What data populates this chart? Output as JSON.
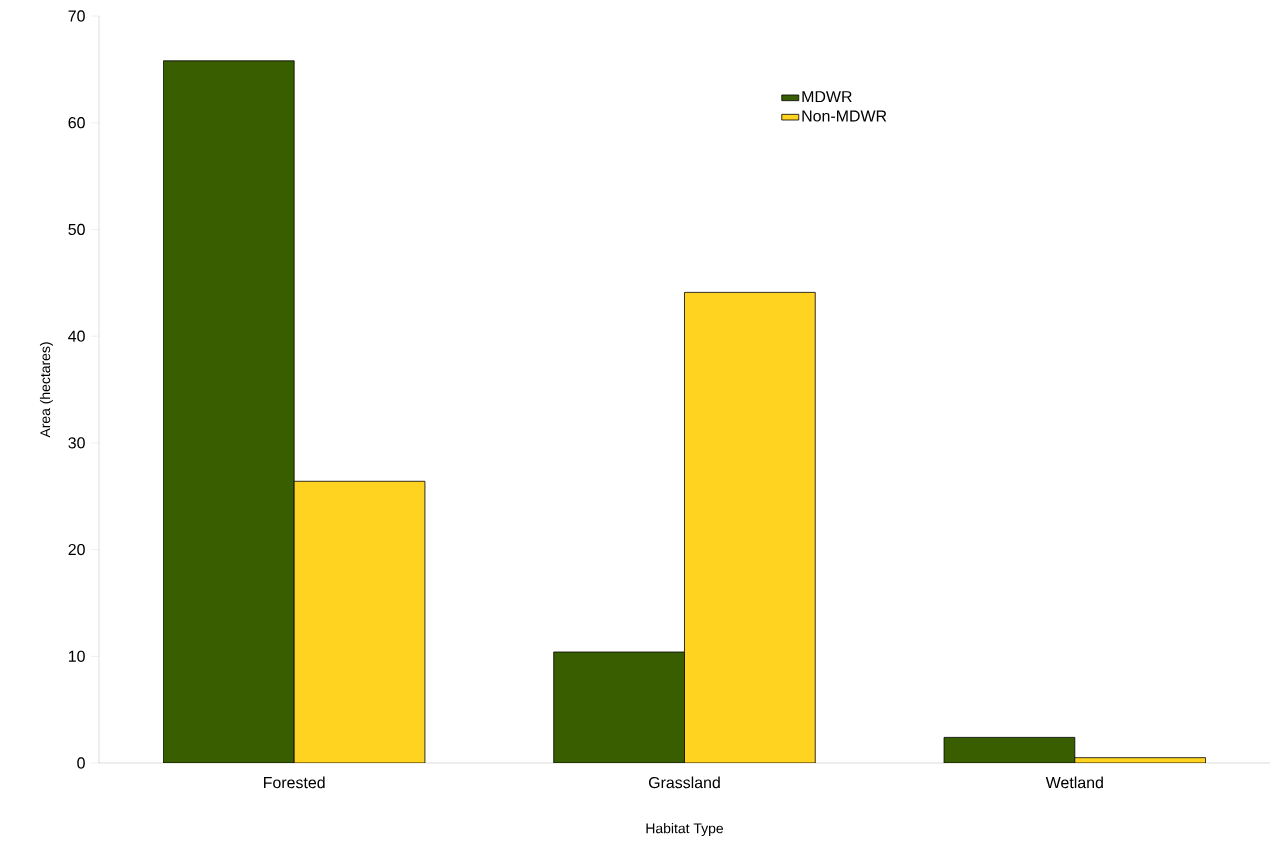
{
  "chart_data": {
    "type": "bar",
    "xlabel": "Habitat Type",
    "ylabel": "Area (hectares)",
    "categories": [
      "Forested",
      "Grassland",
      "Wetland"
    ],
    "series": [
      {
        "name": "MDWR",
        "color": "#385e00",
        "values": [
          65.8,
          10.4,
          2.4
        ]
      },
      {
        "name": "Non-MDWR",
        "color": "#ffd320",
        "values": [
          26.4,
          44.1,
          0.5
        ]
      }
    ],
    "ylim": [
      0,
      70
    ],
    "yticks": [
      0,
      10,
      20,
      30,
      40,
      50,
      60,
      70
    ],
    "grid": false,
    "legend": "top right"
  }
}
